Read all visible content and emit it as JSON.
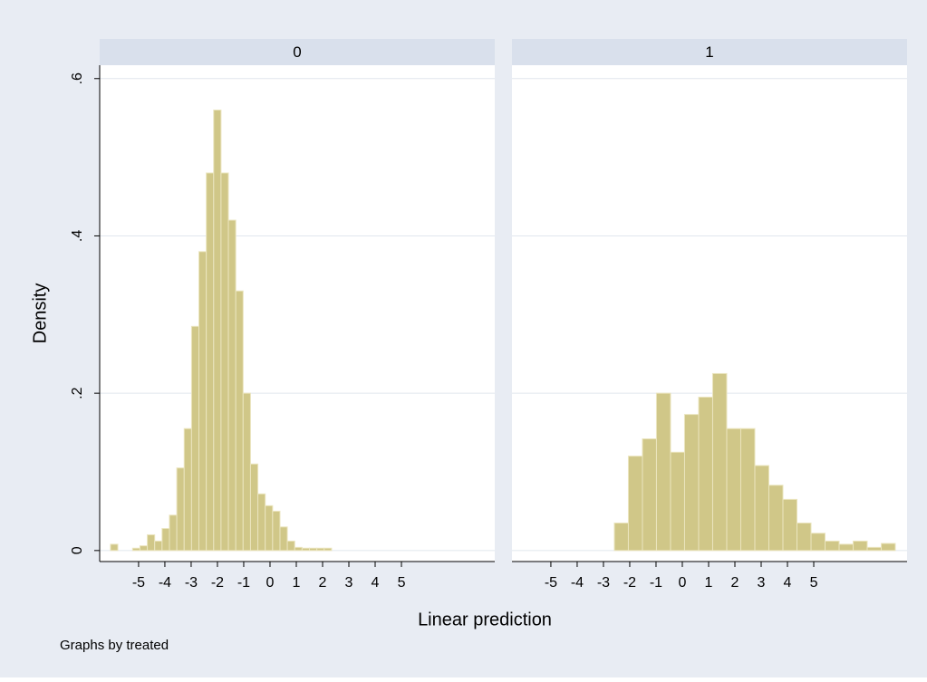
{
  "y_title": "Density",
  "x_title": "Linear prediction",
  "note": "Graphs by treated",
  "chart_data": [
    {
      "type": "histogram",
      "title": "0",
      "color": "#d0c788",
      "bins": [
        -6.069,
        -5.789,
        -5.508,
        -5.228,
        -4.948,
        -4.667,
        -4.387,
        -4.107,
        -3.826,
        -3.546,
        -3.266,
        -2.985,
        -2.705,
        -2.424,
        -2.144,
        -1.864,
        -1.583,
        -1.303,
        -1.023,
        -0.742,
        -0.462,
        -0.182,
        0.099,
        0.379,
        0.659,
        0.94,
        1.22,
        1.5,
        1.781,
        2.061,
        2.341
      ],
      "values": [
        0.008,
        0,
        0,
        0.003,
        0.006,
        0.02,
        0.012,
        0.028,
        0.045,
        0.105,
        0.155,
        0.285,
        0.38,
        0.48,
        0.56,
        0.48,
        0.42,
        0.33,
        0.2,
        0.11,
        0.072,
        0.057,
        0.05,
        0.03,
        0.012,
        0.004,
        0.003,
        0.003,
        0.003,
        0.003
      ],
      "xlim": [
        -6.48,
        8.55
      ],
      "xticks": [
        -5,
        -4,
        -3,
        -2,
        -1,
        0,
        1,
        2,
        3,
        4,
        5
      ],
      "ylim": [
        -0.014,
        0.617
      ],
      "yticks": [
        0,
        {
          "value": 0.2,
          "label": ".2"
        },
        {
          "value": 0.4,
          "label": ".4"
        },
        {
          "value": 0.6,
          "label": ".6"
        }
      ],
      "grid": true
    },
    {
      "type": "histogram",
      "title": "1",
      "color": "#d0c788",
      "bins": [
        -2.586,
        -2.052,
        -1.517,
        -0.983,
        -0.448,
        0.086,
        0.621,
        1.155,
        1.69,
        2.224,
        2.759,
        3.293,
        3.828,
        4.362,
        4.897,
        5.431,
        5.966,
        6.5,
        7.034,
        7.569,
        8.103
      ],
      "values": [
        0.035,
        0.12,
        0.142,
        0.2,
        0.125,
        0.173,
        0.195,
        0.225,
        0.155,
        0.155,
        0.108,
        0.083,
        0.065,
        0.035,
        0.022,
        0.012,
        0.008,
        0.012,
        0.004,
        0.009
      ],
      "xlim": [
        -6.48,
        8.55
      ],
      "xticks": [
        -5,
        -4,
        -3,
        -2,
        -1,
        0,
        1,
        2,
        3,
        4,
        5
      ],
      "ylim": [
        -0.014,
        0.617
      ],
      "yticks": [
        0,
        0.2,
        0.4,
        0.6
      ],
      "grid": true
    }
  ]
}
